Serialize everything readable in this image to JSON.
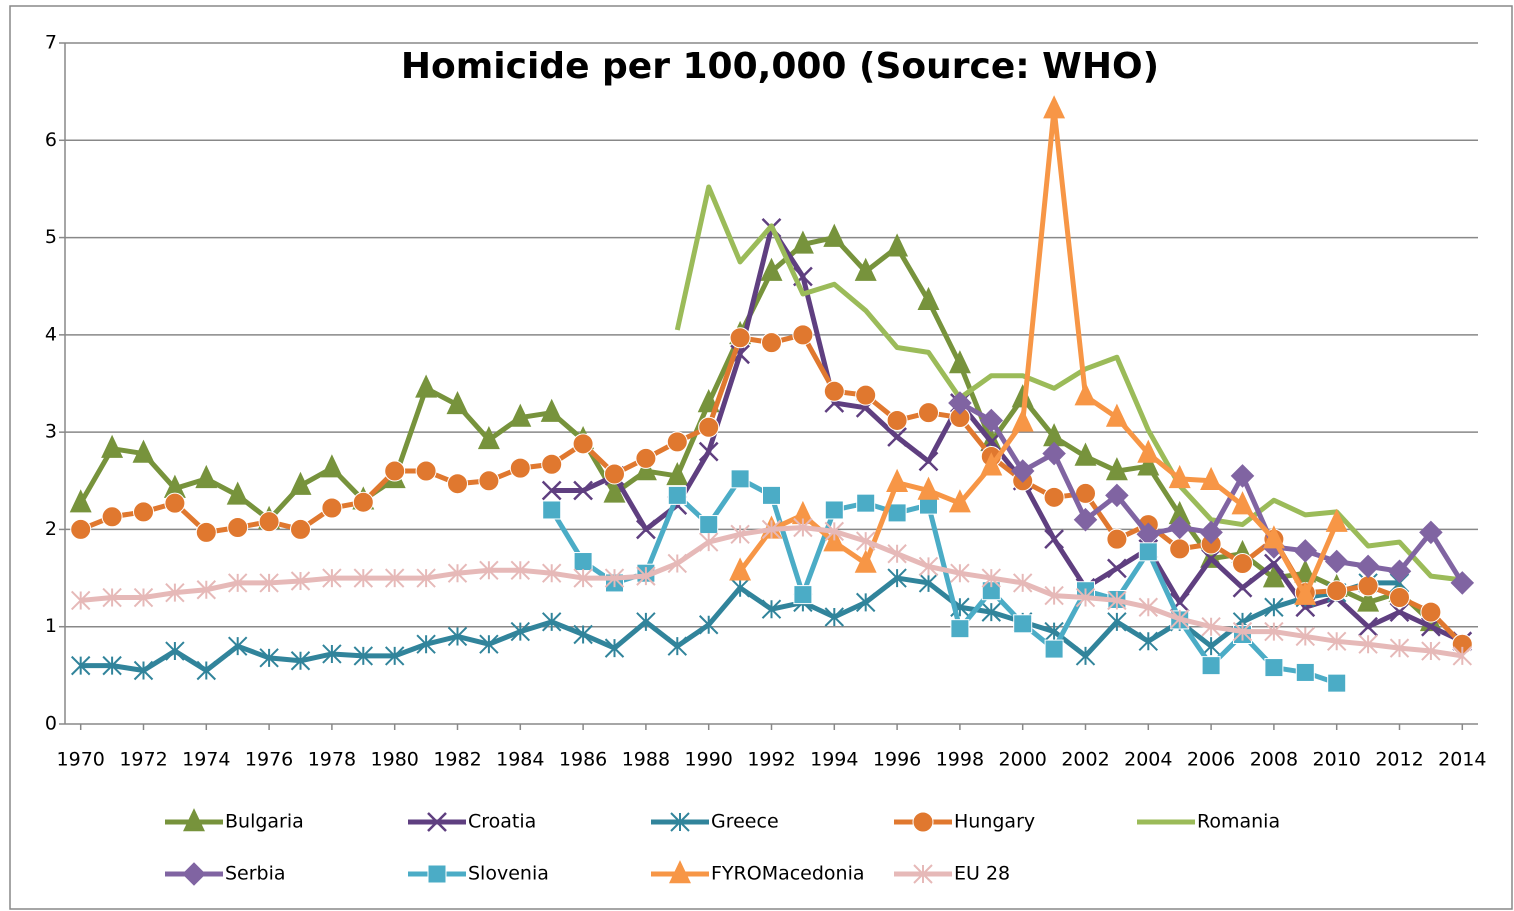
{
  "chart_data": {
    "type": "line",
    "title": "Homicide per 100,000 (Source: WHO)",
    "x": [
      1970,
      1971,
      1972,
      1973,
      1974,
      1975,
      1976,
      1977,
      1978,
      1979,
      1980,
      1981,
      1982,
      1983,
      1984,
      1985,
      1986,
      1987,
      1988,
      1989,
      1990,
      1991,
      1992,
      1993,
      1994,
      1995,
      1996,
      1997,
      1998,
      1999,
      2000,
      2001,
      2002,
      2003,
      2004,
      2005,
      2006,
      2007,
      2008,
      2009,
      2010,
      2011,
      2012,
      2013,
      2014
    ],
    "xlim": [
      1969.5,
      2014.5
    ],
    "xticks": [
      1970,
      1972,
      1974,
      1976,
      1978,
      1980,
      1982,
      1984,
      1986,
      1988,
      1990,
      1992,
      1994,
      1996,
      1998,
      2000,
      2002,
      2004,
      2006,
      2008,
      2010,
      2012,
      2014
    ],
    "ylim": [
      0,
      7
    ],
    "yticks": [
      0,
      1,
      2,
      3,
      4,
      5,
      6,
      7
    ],
    "grid": true,
    "legend": "bottom",
    "series": [
      {
        "name": "Bulgaria",
        "color": "#77933c",
        "marker": "triangle",
        "values": [
          2.27,
          2.83,
          2.78,
          2.42,
          2.52,
          2.35,
          2.1,
          2.45,
          2.63,
          2.3,
          2.52,
          3.45,
          3.28,
          2.92,
          3.15,
          3.2,
          2.92,
          2.37,
          2.6,
          2.55,
          3.3,
          4.0,
          4.65,
          4.93,
          5.0,
          4.65,
          4.9,
          4.35,
          3.7,
          2.9,
          3.35,
          2.95,
          2.75,
          2.6,
          2.65,
          2.15,
          1.7,
          1.75,
          1.5,
          1.55,
          1.4,
          1.25,
          1.35,
          1.05,
          null
        ]
      },
      {
        "name": "Croatia",
        "color": "#5f3f80",
        "marker": "x",
        "values": [
          null,
          null,
          null,
          null,
          null,
          null,
          null,
          null,
          null,
          null,
          null,
          null,
          null,
          null,
          null,
          2.4,
          2.4,
          2.55,
          2.0,
          2.25,
          2.8,
          3.8,
          5.1,
          4.6,
          3.3,
          3.25,
          2.95,
          2.7,
          3.3,
          2.9,
          2.5,
          1.9,
          1.4,
          1.6,
          1.8,
          1.25,
          1.7,
          1.4,
          1.65,
          1.2,
          1.3,
          1.0,
          1.15,
          1.0,
          0.85
        ]
      },
      {
        "name": "Greece",
        "color": "#31849b",
        "marker": "star",
        "values": [
          0.6,
          0.6,
          0.55,
          0.75,
          0.55,
          0.8,
          0.68,
          0.65,
          0.72,
          0.7,
          0.7,
          0.82,
          0.9,
          0.82,
          0.95,
          1.05,
          0.92,
          0.78,
          1.05,
          0.8,
          1.02,
          1.4,
          1.18,
          1.25,
          1.1,
          1.25,
          1.5,
          1.45,
          1.2,
          1.15,
          1.05,
          0.95,
          0.7,
          1.05,
          0.85,
          1.05,
          0.8,
          1.05,
          1.2,
          1.3,
          1.35,
          1.45,
          1.45,
          null,
          null
        ]
      },
      {
        "name": "Hungary",
        "color": "#e0782f",
        "marker": "circle",
        "values": [
          2.0,
          2.13,
          2.18,
          2.27,
          1.97,
          2.02,
          2.08,
          2.0,
          2.22,
          2.28,
          2.6,
          2.6,
          2.47,
          2.5,
          2.63,
          2.67,
          2.88,
          2.57,
          2.73,
          2.9,
          3.05,
          3.97,
          3.92,
          4.0,
          3.42,
          3.38,
          3.12,
          3.2,
          3.15,
          2.75,
          2.5,
          2.33,
          2.37,
          1.9,
          2.05,
          1.8,
          1.85,
          1.65,
          1.9,
          1.35,
          1.37,
          1.42,
          1.3,
          1.15,
          0.82
        ]
      },
      {
        "name": "Romania",
        "color": "#9bbb59",
        "marker": "none",
        "values": [
          null,
          null,
          null,
          null,
          null,
          null,
          null,
          null,
          null,
          null,
          null,
          null,
          null,
          null,
          null,
          null,
          null,
          null,
          null,
          4.05,
          5.52,
          4.75,
          5.12,
          4.42,
          4.52,
          4.25,
          3.87,
          3.82,
          3.35,
          3.58,
          3.58,
          3.45,
          3.65,
          3.77,
          3.02,
          2.45,
          2.1,
          2.05,
          2.3,
          2.15,
          2.18,
          1.83,
          1.87,
          1.52,
          1.48
        ]
      },
      {
        "name": "Serbia",
        "color": "#8064a2",
        "marker": "diamond",
        "values": [
          null,
          null,
          null,
          null,
          null,
          null,
          null,
          null,
          null,
          null,
          null,
          null,
          null,
          null,
          null,
          null,
          null,
          null,
          null,
          null,
          null,
          null,
          null,
          null,
          null,
          null,
          null,
          null,
          3.3,
          3.12,
          2.6,
          2.78,
          2.1,
          2.35,
          1.95,
          2.02,
          1.97,
          2.55,
          1.82,
          1.78,
          1.67,
          1.62,
          1.57,
          1.97,
          1.45
        ]
      },
      {
        "name": "Slovenia",
        "color": "#4bacc6",
        "marker": "square",
        "values": [
          null,
          null,
          null,
          null,
          null,
          null,
          null,
          null,
          null,
          null,
          null,
          null,
          null,
          null,
          null,
          2.2,
          1.67,
          1.45,
          1.55,
          2.35,
          2.05,
          2.52,
          2.35,
          1.33,
          2.2,
          2.27,
          2.17,
          2.25,
          0.98,
          1.37,
          1.03,
          0.77,
          1.37,
          1.28,
          1.77,
          1.07,
          0.6,
          0.92,
          0.58,
          0.53,
          0.42,
          null,
          null,
          null,
          null
        ]
      },
      {
        "name": "FYROMacedonia",
        "color": "#f79646",
        "marker": "triangle",
        "values": [
          null,
          null,
          null,
          null,
          null,
          null,
          null,
          null,
          null,
          null,
          null,
          null,
          null,
          null,
          null,
          null,
          null,
          null,
          null,
          null,
          null,
          1.57,
          2.0,
          2.15,
          1.87,
          1.65,
          2.48,
          2.4,
          2.27,
          2.65,
          3.1,
          6.32,
          3.37,
          3.15,
          2.78,
          2.52,
          2.5,
          2.25,
          1.9,
          1.32,
          2.07,
          null,
          null,
          null,
          null
        ]
      },
      {
        "name": "EU 28",
        "color": "#e6b9b8",
        "marker": "star",
        "values": [
          1.27,
          1.3,
          1.3,
          1.35,
          1.38,
          1.45,
          1.45,
          1.47,
          1.5,
          1.5,
          1.5,
          1.5,
          1.55,
          1.58,
          1.58,
          1.55,
          1.5,
          1.5,
          1.52,
          1.65,
          1.87,
          1.95,
          2.0,
          2.02,
          1.98,
          1.88,
          1.75,
          1.62,
          1.55,
          1.5,
          1.45,
          1.32,
          1.3,
          1.27,
          1.2,
          1.08,
          1.0,
          0.95,
          0.95,
          0.9,
          0.85,
          0.82,
          0.78,
          0.75,
          0.7
        ]
      }
    ]
  }
}
